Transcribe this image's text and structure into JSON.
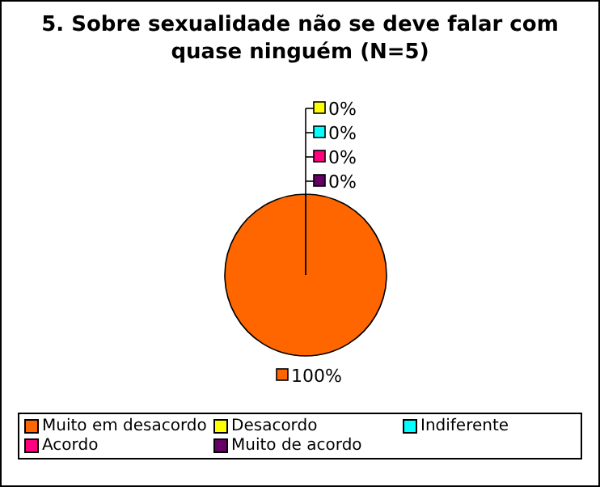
{
  "chart_data": {
    "type": "pie",
    "title": "5. Sobre sexualidade não se deve falar com quase ninguém (N=5)",
    "categories": [
      "Muito em desacordo",
      "Desacordo",
      "Indiferente",
      "Acordo",
      "Muito de acordo"
    ],
    "values": [
      100,
      0,
      0,
      0,
      0
    ],
    "colors": [
      "#ff6600",
      "#ffff00",
      "#00ffff",
      "#ff0080",
      "#660066"
    ],
    "value_labels": [
      "100%",
      "0%",
      "0%",
      "0%",
      "0%"
    ],
    "legend": "bottom"
  }
}
